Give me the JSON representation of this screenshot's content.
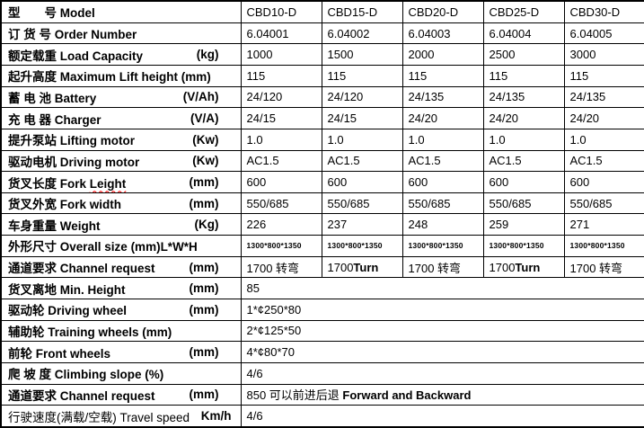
{
  "colors": {
    "background": "#ffffff",
    "text": "#000000",
    "border": "#000000",
    "spellcheck_squiggle": "#ff0000"
  },
  "table": {
    "rows": [
      {
        "id": "model",
        "cn": "型　　号",
        "en": "Model",
        "unit": "",
        "values": [
          "CBD10-D",
          "CBD15-D",
          "CBD20-D",
          "CBD25-D",
          "CBD30-D"
        ]
      },
      {
        "id": "order-number",
        "cn": "订 货 号",
        "en": "Order Number",
        "unit": "",
        "values": [
          "6.04001",
          "6.04002",
          "6.04003",
          "6.04004",
          "6.04005"
        ]
      },
      {
        "id": "load-capacity",
        "cn": "额定载重",
        "en": "Load Capacity",
        "unit": "(kg)",
        "values": [
          "1000",
          "1500",
          "2000",
          "2500",
          "3000"
        ]
      },
      {
        "id": "lift-height",
        "cn": "起升高度",
        "en": "Maximum Lift height (mm)",
        "unit": "",
        "values": [
          "115",
          "115",
          "115",
          "115",
          "115"
        ]
      },
      {
        "id": "battery",
        "cn": "蓄 电 池",
        "en": "Battery",
        "unit": "(V/Ah)",
        "values": [
          "24/120",
          "24/120",
          "24/135",
          "24/135",
          "24/135"
        ]
      },
      {
        "id": "charger",
        "cn": "充 电 器",
        "en": "Charger",
        "unit": "(V/A)",
        "values": [
          "24/15",
          "24/15",
          "24/20",
          "24/20",
          "24/20"
        ]
      },
      {
        "id": "lifting-motor",
        "cn": "提升泵站",
        "en": "Lifting motor",
        "unit": "(Kw)",
        "values": [
          "1.0",
          "1.0",
          "1.0",
          "1.0",
          "1.0"
        ]
      },
      {
        "id": "driving-motor",
        "cn": "驱动电机",
        "en": "Driving motor",
        "unit": "(Kw)",
        "values": [
          "AC1.5",
          "AC1.5",
          "AC1.5",
          "AC1.5",
          "AC1.5"
        ]
      },
      {
        "id": "fork-length",
        "cn": "货叉长度",
        "en": "Fork",
        "en_squiggle": "Leight",
        "unit": "(mm)",
        "values": [
          "600",
          "600",
          "600",
          "600",
          "600"
        ]
      },
      {
        "id": "fork-width",
        "cn": "货叉外宽",
        "en": "Fork width",
        "unit": "(mm)",
        "values": [
          "550/685",
          "550/685",
          "550/685",
          "550/685",
          "550/685"
        ]
      },
      {
        "id": "weight",
        "cn": "车身重量",
        "en": "Weight",
        "unit": "(Kg)",
        "values": [
          "226",
          "237",
          "248",
          "259",
          "271"
        ]
      },
      {
        "id": "overall-size",
        "cn": "外形尺寸",
        "en": "Overall size (mm)L*W*H",
        "unit": "",
        "small_values": true,
        "values": [
          "1300*800*1350",
          "1300*800*1350",
          "1300*800*1350",
          "1300*800*1350",
          "1300*800*1350"
        ]
      },
      {
        "id": "channel-request",
        "cn": "通道要求",
        "en": "Channel request",
        "unit": "(mm)",
        "values": [
          "1700 转弯",
          {
            "pre": "1700",
            "bold": "Turn"
          },
          "1700 转弯",
          {
            "pre": "1700",
            "bold": "Turn"
          },
          "1700 转弯"
        ]
      },
      {
        "id": "min-height",
        "cn": "货叉离地",
        "en": "Min. Height",
        "unit": "(mm)",
        "span": true,
        "value": "85"
      },
      {
        "id": "driving-wheel",
        "cn": "驱动轮",
        "en": "Driving wheel",
        "unit": "(mm)",
        "span": true,
        "value": "1*¢250*80"
      },
      {
        "id": "training-wheels",
        "cn": "辅助轮",
        "en": "Training wheels (mm)",
        "unit": "",
        "span": true,
        "value": "2*¢125*50"
      },
      {
        "id": "front-wheels",
        "cn": "前轮",
        "en": "Front wheels",
        "unit": "(mm)",
        "span": true,
        "value": "4*¢80*70"
      },
      {
        "id": "climbing-slope",
        "cn": "爬 坡 度",
        "en": "Climbing slope (%)",
        "unit": "",
        "span": true,
        "value": "4/6"
      },
      {
        "id": "channel-request-2",
        "cn": "通道要求",
        "en": "Channel request",
        "unit": "(mm)",
        "span": true,
        "value": {
          "pre": "850 可以前进后退 ",
          "bold": "Forward and Backward"
        }
      },
      {
        "id": "travel-speed",
        "cn": "行驶速度(满载/空载)",
        "en": "Travel speed",
        "unit": "Km/h",
        "normal_label": true,
        "tight": true,
        "span": true,
        "value": "4/6"
      }
    ]
  }
}
